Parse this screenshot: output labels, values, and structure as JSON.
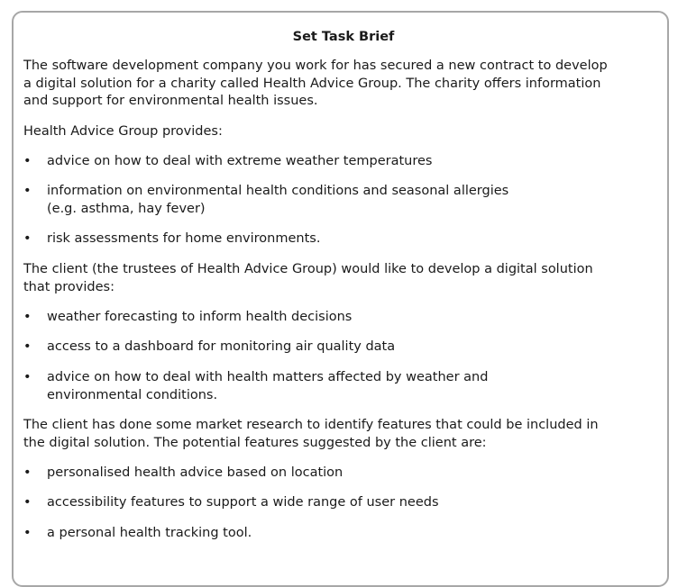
{
  "title": "Set Task Brief",
  "intro_lines": [
    "The software development company you work for has secured a new contract to develop",
    "a digital solution for a charity called Health Advice Group. The charity offers information",
    "and support for environmental health issues."
  ],
  "provides_heading": "Health Advice Group provides:",
  "provides": [
    {
      "lines": [
        "advice on how to deal with extreme weather temperatures"
      ]
    },
    {
      "lines": [
        "information on environmental health conditions and seasonal allergies",
        "(e.g. asthma, hay fever)"
      ]
    },
    {
      "lines": [
        "risk assessments for home environments."
      ]
    }
  ],
  "client_lines": [
    "The client (the trustees of Health Advice Group) would like to develop a digital solution",
    "that provides:"
  ],
  "client_wants": [
    {
      "lines": [
        "weather forecasting to inform health decisions"
      ]
    },
    {
      "lines": [
        "access to a dashboard for monitoring air quality data"
      ]
    },
    {
      "lines": [
        "advice on how to deal with health matters affected by weather and",
        "environmental conditions."
      ]
    }
  ],
  "research_lines": [
    "The client has done some market research to identify features that could be included in",
    "the digital solution. The potential features suggested by the client are:"
  ],
  "features": [
    {
      "lines": [
        "personalised health advice based on location"
      ]
    },
    {
      "lines": [
        "accessibility features to support a wide range of user needs"
      ]
    },
    {
      "lines": [
        "a personal health tracking tool."
      ]
    }
  ],
  "bullet_glyph": "•"
}
